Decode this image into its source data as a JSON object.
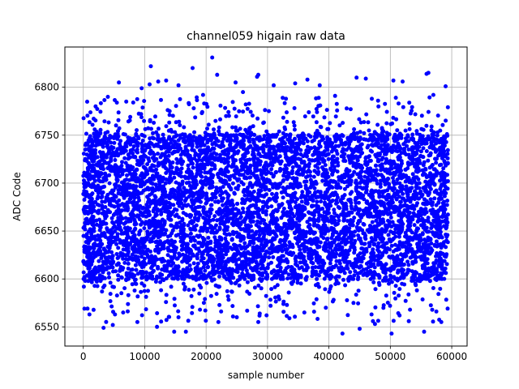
{
  "chart_data": {
    "type": "scatter",
    "title": "channel059 higain raw data",
    "xlabel": "sample number",
    "ylabel": "ADC Code",
    "xlim": [
      -3000,
      62500
    ],
    "ylim": [
      6530,
      6842
    ],
    "xticks": [
      0,
      10000,
      20000,
      30000,
      40000,
      50000,
      60000
    ],
    "yticks": [
      6550,
      6600,
      6650,
      6700,
      6750,
      6800
    ],
    "grid": true,
    "marker_color": "#0000ff",
    "series": [
      {
        "n_samples": 59400,
        "x_range": [
          0,
          59400
        ],
        "band": [
          6600,
          6750
        ],
        "outliers": [
          [
            11000,
            6822
          ],
          [
            17800,
            6820
          ],
          [
            21000,
            6831
          ],
          [
            21800,
            6813
          ],
          [
            28500,
            6813
          ],
          [
            28300,
            6811
          ],
          [
            5800,
            6805
          ],
          [
            12200,
            6806
          ],
          [
            13500,
            6807
          ],
          [
            9500,
            6799
          ],
          [
            10800,
            6803
          ],
          [
            15500,
            6802
          ],
          [
            24800,
            6805
          ],
          [
            31000,
            6802
          ],
          [
            34500,
            6804
          ],
          [
            36500,
            6808
          ],
          [
            38500,
            6802
          ],
          [
            44500,
            6810
          ],
          [
            46000,
            6809
          ],
          [
            50500,
            6807
          ],
          [
            52000,
            6806
          ],
          [
            55900,
            6814
          ],
          [
            56200,
            6815
          ],
          [
            59000,
            6801
          ],
          [
            2000,
            6780
          ],
          [
            4000,
            6790
          ],
          [
            7000,
            6785
          ],
          [
            19500,
            6792
          ],
          [
            26000,
            6795
          ],
          [
            33000,
            6788
          ],
          [
            41000,
            6791
          ],
          [
            48000,
            6786
          ],
          [
            57000,
            6792
          ],
          [
            1000,
            6563
          ],
          [
            3300,
            6549
          ],
          [
            4800,
            6552
          ],
          [
            8800,
            6555
          ],
          [
            12000,
            6550
          ],
          [
            14800,
            6545
          ],
          [
            16700,
            6545
          ],
          [
            15500,
            6560
          ],
          [
            22000,
            6555
          ],
          [
            28500,
            6555
          ],
          [
            42200,
            6543
          ],
          [
            45000,
            6548
          ],
          [
            47500,
            6553
          ],
          [
            50200,
            6543
          ],
          [
            53000,
            6556
          ],
          [
            55500,
            6545
          ],
          [
            58300,
            6555
          ],
          [
            6500,
            6565
          ],
          [
            19000,
            6568
          ],
          [
            25000,
            6560
          ],
          [
            36000,
            6565
          ],
          [
            39500,
            6570
          ],
          [
            51500,
            6562
          ],
          [
            57500,
            6566
          ],
          [
            30500,
            6572
          ],
          [
            44000,
            6575
          ]
        ]
      }
    ]
  }
}
